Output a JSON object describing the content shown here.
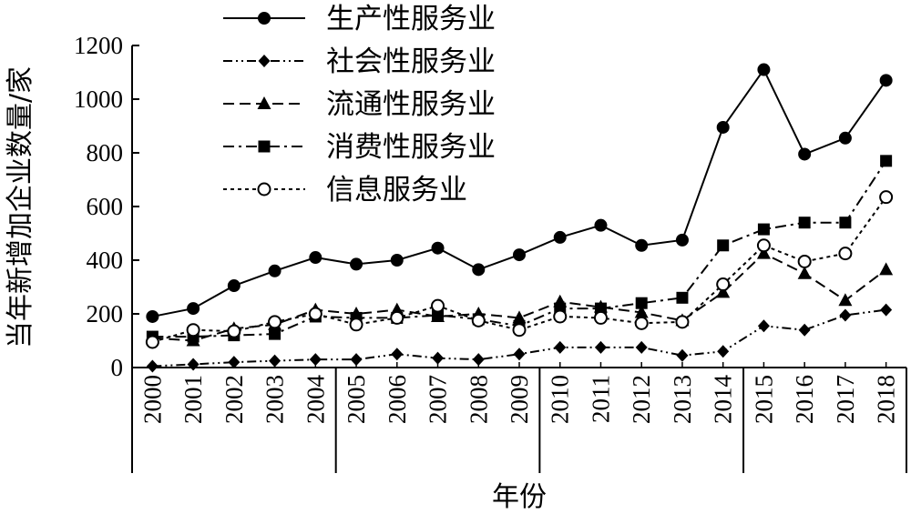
{
  "chart_data": {
    "type": "line",
    "xlabel": "年份",
    "ylabel": "当年新增加企业数量/家",
    "ylim": [
      0,
      1200
    ],
    "yticks": [
      0,
      200,
      400,
      600,
      800,
      1000,
      1200
    ],
    "categories": [
      "2000",
      "2001",
      "2002",
      "2003",
      "2004",
      "2005",
      "2006",
      "2007",
      "2008",
      "2009",
      "2010",
      "2011",
      "2012",
      "2013",
      "2014",
      "2015",
      "2016",
      "2017",
      "2018"
    ],
    "group_separators_after": [
      "2004",
      "2009",
      "2014"
    ],
    "legend_position": "top-center",
    "grid": false,
    "series": [
      {
        "name": "生产性服务业",
        "marker": "circle-filled",
        "dash": "solid",
        "values": [
          190,
          220,
          305,
          360,
          410,
          385,
          400,
          445,
          365,
          420,
          485,
          530,
          455,
          475,
          895,
          1110,
          795,
          855,
          1070
        ]
      },
      {
        "name": "社会性服务业",
        "marker": "diamond-filled",
        "dash": "dash-dot-dot",
        "values": [
          5,
          12,
          20,
          25,
          30,
          30,
          50,
          35,
          30,
          50,
          75,
          75,
          75,
          45,
          60,
          155,
          140,
          195,
          215
        ]
      },
      {
        "name": "流通性服务业",
        "marker": "triangle-filled",
        "dash": "dashed",
        "values": [
          110,
          100,
          145,
          160,
          215,
          200,
          215,
          190,
          200,
          185,
          245,
          225,
          205,
          175,
          280,
          425,
          350,
          250,
          365
        ]
      },
      {
        "name": "消费性服务业",
        "marker": "square-filled",
        "dash": "dash-dot",
        "values": [
          115,
          115,
          120,
          125,
          190,
          185,
          185,
          195,
          180,
          155,
          220,
          220,
          240,
          260,
          455,
          515,
          540,
          540,
          770
        ]
      },
      {
        "name": "信息服务业",
        "marker": "circle-open",
        "dash": "dotted",
        "values": [
          95,
          140,
          135,
          170,
          200,
          160,
          185,
          230,
          175,
          140,
          190,
          185,
          165,
          170,
          310,
          455,
          395,
          425,
          635
        ]
      }
    ]
  }
}
